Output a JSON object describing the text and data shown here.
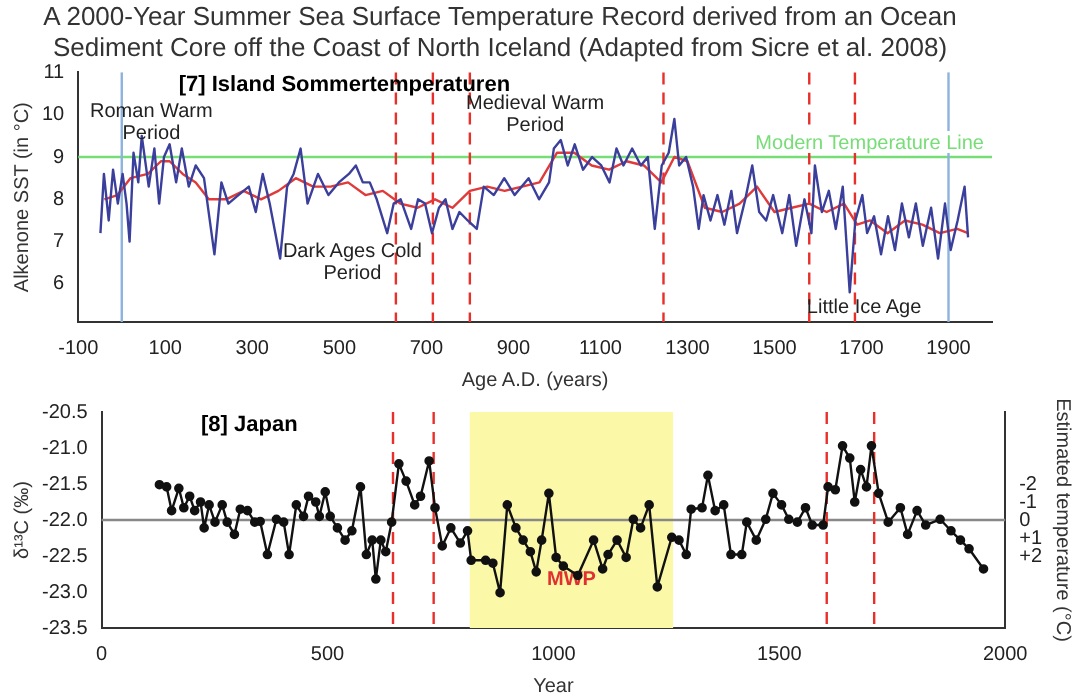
{
  "chart_data": [
    {
      "type": "line",
      "title": "A 2000-Year Summer Sea Surface Temperature Record derived from an Ocean Sediment Core off the Coast of North Iceland (Adapted from Sicre et al. 2008)",
      "subtitle": "[7] Island Sommertemperaturen",
      "xlabel": "Age A.D. (years)",
      "ylabel": "Alkenone SST (in °C)",
      "series": [
        {
          "color": "#3b3f9c",
          "x": [
            -49,
            -41,
            -30,
            -20,
            -9,
            2,
            11,
            18,
            27,
            38,
            46,
            62,
            75,
            86,
            97,
            110,
            125,
            138,
            154,
            170,
            189,
            213,
            229,
            245,
            268,
            292,
            308,
            324,
            340,
            364,
            380,
            395,
            411,
            427,
            451,
            475,
            499,
            522,
            538,
            554,
            570,
            586,
            610,
            625,
            641,
            665,
            681,
            697,
            713,
            729,
            744,
            760,
            776,
            795,
            816,
            832,
            855,
            879,
            903,
            935,
            959,
            982,
            993,
            1009,
            1025,
            1041,
            1060,
            1081,
            1102,
            1121,
            1137,
            1153,
            1173,
            1193,
            1209,
            1225,
            1241,
            1257,
            1270,
            1281,
            1297,
            1313,
            1326,
            1337,
            1353,
            1369,
            1385,
            1401,
            1414,
            1433,
            1449,
            1465,
            1481,
            1497,
            1518,
            1534,
            1550,
            1569,
            1585,
            1593,
            1609,
            1625,
            1641,
            1657,
            1673,
            1686,
            1702,
            1713,
            1729,
            1745,
            1761,
            1777,
            1793,
            1809,
            1825,
            1841,
            1860,
            1876,
            1892,
            1905,
            1921,
            1937,
            1945
          ],
          "values": [
            7.2,
            8.6,
            7.5,
            8.7,
            7.9,
            8.6,
            7.9,
            7.0,
            9.1,
            8.4,
            9.5,
            8.3,
            9.2,
            7.9,
            9.0,
            9.3,
            8.4,
            9.2,
            8.3,
            8.8,
            8.5,
            6.7,
            8.4,
            7.9,
            8.1,
            8.3,
            7.7,
            8.6,
            7.9,
            6.6,
            8.3,
            8.6,
            9.2,
            7.9,
            8.6,
            8.1,
            8.4,
            8.6,
            8.8,
            8.4,
            8.4,
            8.0,
            7.2,
            7.9,
            8.0,
            7.3,
            8.0,
            7.9,
            7.2,
            7.8,
            8.0,
            7.3,
            7.7,
            7.5,
            7.3,
            8.3,
            8.1,
            8.5,
            8.1,
            8.5,
            8.0,
            8.4,
            9.2,
            9.4,
            8.8,
            9.3,
            8.7,
            9.0,
            8.8,
            8.4,
            9.2,
            8.8,
            9.2,
            8.8,
            9.0,
            7.3,
            8.8,
            9.1,
            9.9,
            8.8,
            9.0,
            8.3,
            7.3,
            8.1,
            7.5,
            8.1,
            7.4,
            8.2,
            7.2,
            8.0,
            8.8,
            7.7,
            7.5,
            8.1,
            7.2,
            8.1,
            6.9,
            8.0,
            7.2,
            8.8,
            7.7,
            8.2,
            7.3,
            8.3,
            5.8,
            7.5,
            8.1,
            7.2,
            7.6,
            6.7,
            7.6,
            6.8,
            7.9,
            7.1,
            7.9,
            6.9,
            7.8,
            6.6,
            7.9,
            6.8,
            7.5,
            8.3,
            7.1
          ]
        },
        {
          "color": "#e03a3a",
          "x": [
            -40,
            -10,
            20,
            60,
            90,
            110,
            140,
            170,
            200,
            240,
            280,
            320,
            360,
            400,
            440,
            480,
            520,
            560,
            600,
            640,
            680,
            720,
            760,
            800,
            840,
            880,
            920,
            960,
            1000,
            1040,
            1080,
            1120,
            1160,
            1200,
            1240,
            1270,
            1300,
            1340,
            1380,
            1420,
            1460,
            1500,
            1540,
            1580,
            1620,
            1660,
            1690,
            1720,
            1760,
            1800,
            1840,
            1880,
            1920,
            1945
          ],
          "values": [
            8.0,
            8.1,
            8.5,
            8.6,
            8.9,
            8.9,
            8.6,
            8.4,
            8.0,
            8.0,
            8.2,
            8.0,
            8.2,
            8.5,
            8.3,
            8.3,
            8.4,
            8.1,
            8.2,
            7.9,
            7.8,
            8.0,
            7.8,
            8.2,
            8.3,
            8.2,
            8.3,
            8.4,
            9.1,
            9.1,
            8.8,
            8.7,
            8.9,
            8.8,
            8.4,
            9.0,
            8.9,
            7.8,
            7.7,
            7.9,
            8.3,
            7.7,
            7.8,
            7.9,
            7.7,
            7.9,
            7.4,
            7.5,
            7.2,
            7.5,
            7.4,
            7.2,
            7.3,
            7.2
          ]
        }
      ],
      "xlim": [
        -100,
        2000
      ],
      "xticks": [
        -100,
        100,
        300,
        500,
        700,
        900,
        1100,
        1300,
        1500,
        1700,
        1900
      ],
      "ylim": [
        5.1,
        11
      ],
      "yticks": [
        6,
        7,
        8,
        9,
        10,
        11
      ],
      "ref_lines": [
        {
          "axis": "y",
          "value": 9,
          "label": "Modern Temperature Line",
          "color": "#77dd77",
          "line_style": "solid"
        },
        {
          "axis": "x",
          "value": 630,
          "color": "#e8302a",
          "line_style": "dashed"
        },
        {
          "axis": "x",
          "value": 715,
          "color": "#e8302a",
          "line_style": "dashed"
        },
        {
          "axis": "x",
          "value": 800,
          "color": "#e8302a",
          "line_style": "dashed"
        },
        {
          "axis": "x",
          "value": 1245,
          "color": "#e8302a",
          "line_style": "dashed"
        },
        {
          "axis": "x",
          "value": 1580,
          "color": "#e8302a",
          "line_style": "dashed"
        },
        {
          "axis": "x",
          "value": 1685,
          "color": "#e8302a",
          "line_style": "dashed"
        },
        {
          "axis": "x",
          "value": 0,
          "color": "#8db3dd",
          "line_style": "solid"
        },
        {
          "axis": "x",
          "value": 1900,
          "color": "#8db3dd",
          "line_style": "solid"
        }
      ],
      "annotations": [
        "Roman Warm Period",
        "Medieval Warm Period",
        "Dark Ages Cold Period",
        "Little Ice Age"
      ],
      "legend": false,
      "grid": false,
      "marker": "none"
    },
    {
      "type": "line",
      "subtitle": "[8] Japan",
      "xlabel": "Year",
      "ylabel": "δ¹³C (‰)",
      "y2label": "Estimated temperature (°C)",
      "x": [
        128,
        144,
        155,
        171,
        182,
        195,
        206,
        219,
        227,
        238,
        251,
        267,
        278,
        294,
        307,
        323,
        339,
        351,
        367,
        387,
        403,
        415,
        431,
        447,
        458,
        474,
        482,
        495,
        506,
        522,
        539,
        554,
        573,
        586,
        599,
        607,
        618,
        629,
        642,
        658,
        674,
        693,
        706,
        725,
        738,
        754,
        773,
        794,
        810,
        818,
        850,
        866,
        882,
        898,
        917,
        933,
        949,
        962,
        974,
        990,
        1006,
        1022,
        1054,
        1089,
        1109,
        1121,
        1141,
        1161,
        1177,
        1193,
        1212,
        1230,
        1262,
        1278,
        1294,
        1305,
        1329,
        1342,
        1358,
        1377,
        1393,
        1417,
        1428,
        1449,
        1470,
        1486,
        1505,
        1521,
        1540,
        1558,
        1573,
        1597,
        1608,
        1624,
        1640,
        1656,
        1667,
        1680,
        1693,
        1704,
        1720,
        1741,
        1768,
        1784,
        1805,
        1824,
        1856,
        1880,
        1901,
        1920,
        1952
      ],
      "series": [
        {
          "color": "#111111",
          "values": [
            -21.51,
            -21.54,
            -21.87,
            -21.56,
            -21.83,
            -21.67,
            -21.87,
            -21.75,
            -22.11,
            -21.79,
            -22.03,
            -21.79,
            -22.03,
            -22.2,
            -21.85,
            -21.87,
            -22.03,
            -22.02,
            -22.48,
            -21.99,
            -22.03,
            -22.48,
            -21.79,
            -21.95,
            -21.67,
            -21.75,
            -21.95,
            -21.61,
            -21.95,
            -22.11,
            -22.28,
            -22.15,
            -21.54,
            -22.48,
            -22.28,
            -22.82,
            -22.28,
            -22.44,
            -22.03,
            -21.22,
            -21.46,
            -21.79,
            -21.67,
            -21.18,
            -21.83,
            -22.36,
            -22.11,
            -22.32,
            -22.15,
            -22.56,
            -22.56,
            -22.6,
            -23.01,
            -21.79,
            -22.11,
            -22.28,
            -22.44,
            -22.72,
            -22.28,
            -21.63,
            -22.52,
            -22.64,
            -22.77,
            -22.28,
            -22.68,
            -22.48,
            -22.28,
            -22.52,
            -21.99,
            -22.11,
            -21.79,
            -22.93,
            -22.24,
            -22.28,
            -22.48,
            -21.85,
            -21.83,
            -21.38,
            -21.87,
            -21.79,
            -22.48,
            -22.48,
            -22.03,
            -22.28,
            -21.99,
            -21.63,
            -21.79,
            -21.99,
            -22.03,
            -21.83,
            -22.07,
            -22.07,
            -21.54,
            -21.58,
            -20.97,
            -21.14,
            -21.75,
            -21.3,
            -21.54,
            -20.97,
            -21.63,
            -22.03,
            -21.83,
            -22.2,
            -21.87,
            -22.07,
            -21.99,
            -22.15,
            -22.28,
            -22.4,
            -22.68
          ]
        }
      ],
      "xlim": [
        0,
        2000
      ],
      "xticks": [
        0,
        500,
        1000,
        1500,
        2000
      ],
      "ylim": [
        -23.5,
        -20.5
      ],
      "yticks": [
        -20.5,
        {
          "value": -21,
          "label": "-21.0"
        },
        -21.5,
        {
          "value": -22,
          "label": "-22.0"
        },
        -22.5,
        {
          "value": -23,
          "label": "-23.0"
        },
        -23.5
      ],
      "y2lim": [
        6,
        -6
      ],
      "y2ticks": [
        -2,
        -1,
        0,
        {
          "value": 1,
          "label": "+1"
        },
        {
          "value": 2,
          "label": "+2"
        }
      ],
      "ref_lines": [
        {
          "axis": "y",
          "value": -22,
          "color": "#888888",
          "line_style": "solid"
        },
        {
          "axis": "x",
          "value": 645,
          "color": "#e8302a",
          "line_style": "dashed"
        },
        {
          "axis": "x",
          "value": 735,
          "color": "#e8302a",
          "line_style": "dashed"
        },
        {
          "axis": "x",
          "value": 1605,
          "color": "#e8302a",
          "line_style": "dashed"
        },
        {
          "axis": "x",
          "value": 1710,
          "color": "#e8302a",
          "line_style": "dashed"
        }
      ],
      "bands": [
        {
          "axis": "x",
          "from": 815,
          "to": 1265,
          "label": "MWP",
          "color": "#fbf8a8"
        }
      ],
      "legend": false,
      "grid": false,
      "marker": "circle"
    }
  ]
}
